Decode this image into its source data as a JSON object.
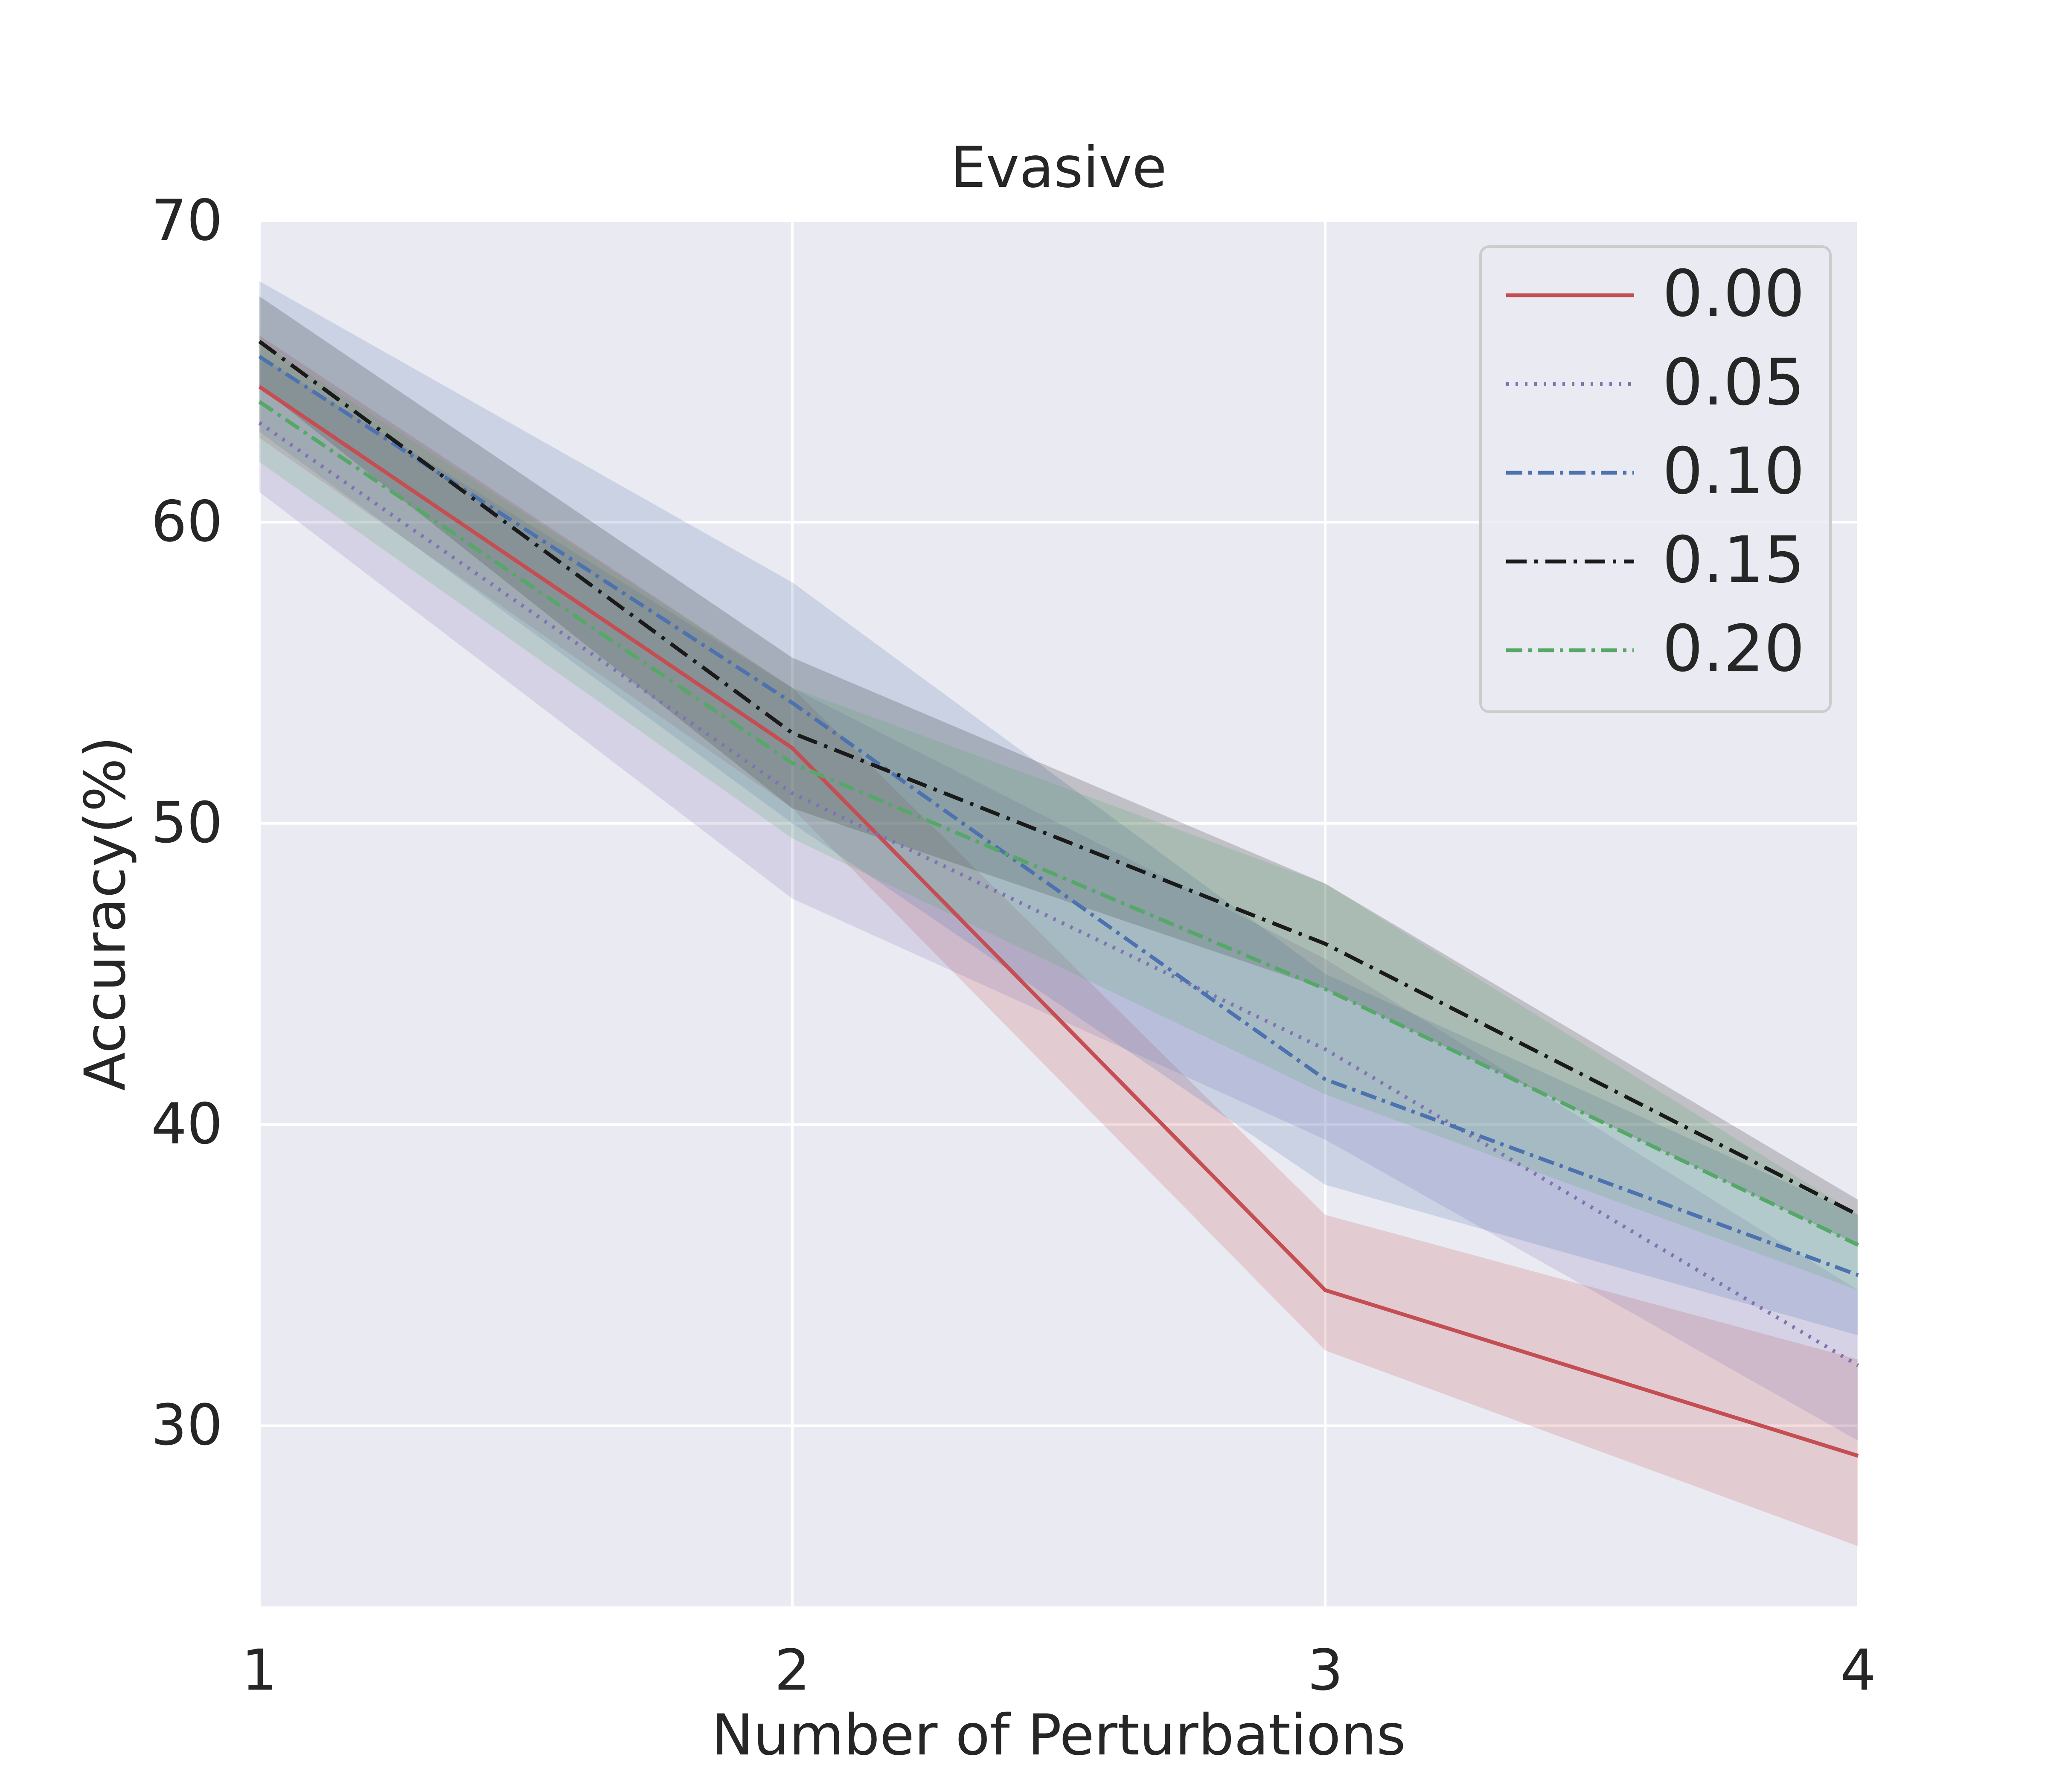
{
  "chart_data": {
    "type": "line",
    "title": "Evasive",
    "xlabel": "Number of Perturbations",
    "ylabel": "Accuracy(%)",
    "x": [
      1,
      2,
      3,
      4
    ],
    "xticks": [
      1,
      2,
      3,
      4
    ],
    "xtick_labels": [
      "1",
      "2",
      "3",
      "4"
    ],
    "xlim": [
      1,
      4
    ],
    "yticks": [
      30,
      40,
      50,
      60,
      70
    ],
    "ytick_labels": [
      "30",
      "40",
      "50",
      "60",
      "70"
    ],
    "ylim": [
      24,
      70
    ],
    "grid": true,
    "legend_position": "top-right",
    "series": [
      {
        "name": "0.00",
        "label": "0.00",
        "color": "#c44e52",
        "style": "solid",
        "values": [
          64.5,
          52.5,
          34.5,
          29.0
        ],
        "lower": [
          62.8,
          50.5,
          32.5,
          26.0
        ],
        "upper": [
          66.2,
          54.5,
          37.0,
          32.2
        ]
      },
      {
        "name": "0.05",
        "label": "0.05",
        "color": "#8172b3",
        "style": "dotted",
        "values": [
          63.3,
          51.0,
          42.5,
          32.0
        ],
        "lower": [
          61.0,
          47.5,
          39.5,
          29.5
        ],
        "upper": [
          65.5,
          54.5,
          45.5,
          34.5
        ]
      },
      {
        "name": "0.10",
        "label": "0.10",
        "color": "#4c72b0",
        "style": "dashdot",
        "values": [
          65.5,
          54.0,
          41.5,
          35.0
        ],
        "lower": [
          63.0,
          50.0,
          38.0,
          33.0
        ],
        "upper": [
          68.0,
          58.0,
          45.0,
          37.0
        ]
      },
      {
        "name": "0.15",
        "label": "0.15",
        "color": "#1a1a1a",
        "style": "dashdot-long",
        "values": [
          66.0,
          53.0,
          46.0,
          37.0
        ],
        "lower": [
          64.5,
          50.5,
          44.5,
          36.0
        ],
        "upper": [
          67.5,
          55.5,
          48.0,
          37.5
        ]
      },
      {
        "name": "0.20",
        "label": "0.20",
        "color": "#55a868",
        "style": "dashdot",
        "values": [
          64.0,
          52.0,
          44.5,
          36.0
        ],
        "lower": [
          62.0,
          49.5,
          41.0,
          34.5
        ],
        "upper": [
          66.0,
          54.5,
          48.0,
          37.0
        ]
      }
    ]
  }
}
